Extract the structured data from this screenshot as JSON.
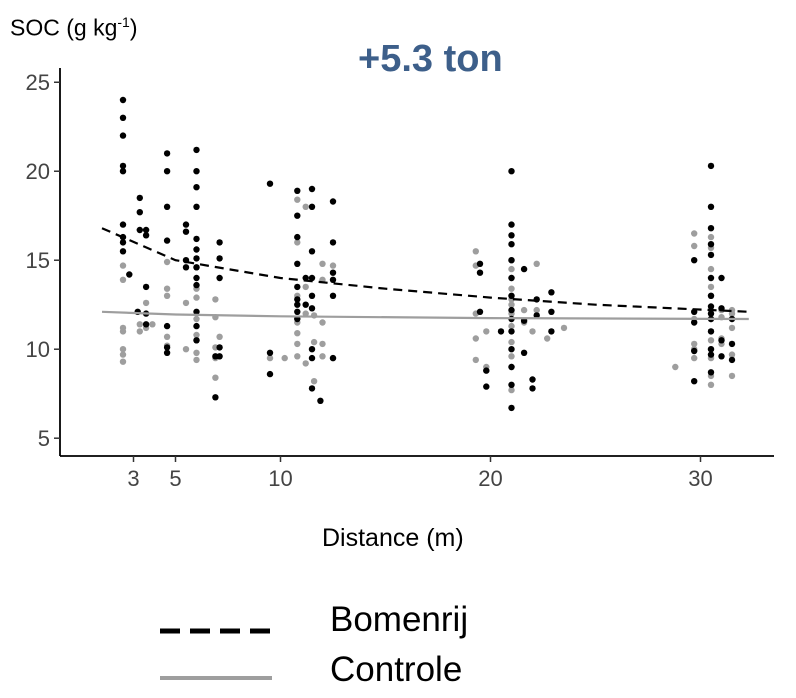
{
  "chart_data": {
    "type": "scatter",
    "ylabel": {
      "main": "SOC (g kg",
      "sup": "-1",
      "end": ")"
    },
    "xlabel": "Distance (m)",
    "annotation": "+5.3 ton",
    "xlim": [
      -0.5,
      33.5
    ],
    "ylim": [
      4.0,
      25.8
    ],
    "xticks": [
      3,
      5,
      10,
      20,
      30
    ],
    "yticks": [
      5,
      10,
      15,
      20,
      25
    ],
    "grid": false,
    "legend_position": "bottom",
    "series": [
      {
        "name": "Bomenrij",
        "color": "#000000",
        "line_style": "dashed",
        "trend": [
          [
            1.5,
            16.8
          ],
          [
            5,
            15.0
          ],
          [
            10,
            14.0
          ],
          [
            15,
            13.4
          ],
          [
            20,
            12.9
          ],
          [
            25,
            12.5
          ],
          [
            32.3,
            12.1
          ]
        ],
        "points": [
          [
            2.5,
            24.0
          ],
          [
            2.5,
            23.0
          ],
          [
            2.5,
            22.0
          ],
          [
            2.5,
            20.3
          ],
          [
            2.5,
            20.0
          ],
          [
            2.5,
            17.0
          ],
          [
            2.5,
            16.3
          ],
          [
            2.5,
            16.0
          ],
          [
            2.5,
            15.5
          ],
          [
            2.8,
            14.2
          ],
          [
            3.3,
            18.5
          ],
          [
            3.3,
            17.7
          ],
          [
            3.3,
            16.7
          ],
          [
            3.2,
            12.1
          ],
          [
            3.6,
            16.7
          ],
          [
            3.6,
            16.4
          ],
          [
            3.6,
            13.5
          ],
          [
            3.6,
            12.0
          ],
          [
            3.6,
            11.4
          ],
          [
            4.6,
            21.0
          ],
          [
            4.6,
            20.0
          ],
          [
            4.6,
            18.0
          ],
          [
            4.6,
            16.1
          ],
          [
            4.6,
            11.3
          ],
          [
            4.6,
            10.1
          ],
          [
            4.6,
            9.8
          ],
          [
            5.5,
            17.0
          ],
          [
            5.5,
            16.6
          ],
          [
            5.5,
            15.0
          ],
          [
            5.5,
            14.6
          ],
          [
            6.0,
            21.2
          ],
          [
            6.0,
            20.0
          ],
          [
            6.0,
            19.1
          ],
          [
            6.0,
            18.0
          ],
          [
            6.0,
            16.2
          ],
          [
            6.0,
            15.6
          ],
          [
            6.0,
            15.1
          ],
          [
            6.0,
            14.6
          ],
          [
            6.0,
            14.0
          ],
          [
            6.0,
            13.6
          ],
          [
            6.0,
            12.1
          ],
          [
            6.0,
            11.3
          ],
          [
            6.0,
            10.5
          ],
          [
            7.1,
            16.0
          ],
          [
            7.1,
            15.1
          ],
          [
            7.1,
            14.0
          ],
          [
            7.1,
            10.1
          ],
          [
            7.1,
            9.6
          ],
          [
            6.9,
            9.6
          ],
          [
            6.9,
            7.3
          ],
          [
            9.5,
            19.3
          ],
          [
            9.5,
            9.8
          ],
          [
            9.5,
            8.6
          ],
          [
            10.8,
            18.9
          ],
          [
            10.8,
            17.5
          ],
          [
            10.8,
            16.3
          ],
          [
            10.8,
            14.8
          ],
          [
            10.8,
            13.5
          ],
          [
            10.8,
            12.8
          ],
          [
            10.8,
            12.5
          ],
          [
            10.8,
            12.1
          ],
          [
            10.8,
            11.7
          ],
          [
            11.5,
            19.0
          ],
          [
            11.5,
            18.0
          ],
          [
            11.5,
            15.5
          ],
          [
            11.5,
            14.0
          ],
          [
            11.5,
            13.0
          ],
          [
            11.5,
            12.3
          ],
          [
            11.5,
            10.0
          ],
          [
            11.5,
            9.5
          ],
          [
            11.5,
            7.8
          ],
          [
            11.9,
            7.1
          ],
          [
            12.5,
            18.3
          ],
          [
            12.5,
            16.0
          ],
          [
            12.5,
            14.3
          ],
          [
            12.5,
            13.9
          ],
          [
            12.5,
            13.0
          ],
          [
            12.5,
            9.5
          ],
          [
            11.2,
            14.0
          ],
          [
            11.2,
            12.5
          ],
          [
            19.5,
            14.8
          ],
          [
            19.5,
            14.3
          ],
          [
            19.5,
            12.1
          ],
          [
            19.8,
            8.8
          ],
          [
            19.8,
            7.9
          ],
          [
            20.5,
            11.0
          ],
          [
            21.0,
            20.0
          ],
          [
            21.0,
            17.0
          ],
          [
            21.0,
            16.4
          ],
          [
            21.0,
            15.9
          ],
          [
            21.0,
            15.0
          ],
          [
            21.0,
            14.0
          ],
          [
            21.0,
            13.0
          ],
          [
            21.0,
            12.2
          ],
          [
            21.0,
            11.7
          ],
          [
            21.0,
            11.0
          ],
          [
            21.0,
            10.0
          ],
          [
            21.0,
            9.0
          ],
          [
            21.0,
            8.0
          ],
          [
            21.0,
            6.7
          ],
          [
            21.6,
            14.5
          ],
          [
            21.6,
            11.6
          ],
          [
            21.6,
            9.8
          ],
          [
            22.0,
            8.3
          ],
          [
            22.0,
            7.8
          ],
          [
            22.2,
            11.9
          ],
          [
            22.2,
            12.8
          ],
          [
            22.9,
            13.2
          ],
          [
            22.9,
            12.1
          ],
          [
            22.9,
            11.0
          ],
          [
            29.7,
            15.0
          ],
          [
            29.7,
            12.1
          ],
          [
            29.7,
            11.5
          ],
          [
            29.7,
            9.9
          ],
          [
            29.7,
            8.2
          ],
          [
            30.5,
            20.3
          ],
          [
            30.5,
            18.0
          ],
          [
            30.5,
            16.8
          ],
          [
            30.5,
            15.9
          ],
          [
            30.5,
            15.3
          ],
          [
            30.5,
            14.0
          ],
          [
            30.5,
            13.0
          ],
          [
            30.5,
            12.4
          ],
          [
            30.5,
            12.0
          ],
          [
            30.5,
            11.7
          ],
          [
            30.5,
            11.0
          ],
          [
            30.5,
            10.0
          ],
          [
            30.5,
            9.7
          ],
          [
            30.5,
            8.7
          ],
          [
            31.0,
            14.0
          ],
          [
            31.0,
            12.3
          ],
          [
            31.0,
            10.5
          ],
          [
            31.0,
            9.6
          ],
          [
            31.5,
            11.7
          ],
          [
            31.5,
            10.3
          ],
          [
            31.5,
            9.4
          ]
        ]
      },
      {
        "name": "Controle",
        "color": "#9e9e9e",
        "line_style": "solid",
        "trend": [
          [
            1.5,
            12.1
          ],
          [
            5,
            11.95
          ],
          [
            10,
            11.85
          ],
          [
            20,
            11.75
          ],
          [
            32.3,
            11.7
          ]
        ],
        "points": [
          [
            2.5,
            14.7
          ],
          [
            2.5,
            13.9
          ],
          [
            2.5,
            11.2
          ],
          [
            2.5,
            11.0
          ],
          [
            2.5,
            10.0
          ],
          [
            2.5,
            9.7
          ],
          [
            2.5,
            9.3
          ],
          [
            3.3,
            11.4
          ],
          [
            3.3,
            11.0
          ],
          [
            3.6,
            12.6
          ],
          [
            3.6,
            11.2
          ],
          [
            3.9,
            11.4
          ],
          [
            4.6,
            14.9
          ],
          [
            4.6,
            13.4
          ],
          [
            4.6,
            13.0
          ],
          [
            4.6,
            10.7
          ],
          [
            4.6,
            10.2
          ],
          [
            5.5,
            12.6
          ],
          [
            5.5,
            10.0
          ],
          [
            6.0,
            14.6
          ],
          [
            6.0,
            13.4
          ],
          [
            6.0,
            12.9
          ],
          [
            6.0,
            11.7
          ],
          [
            6.0,
            10.8
          ],
          [
            6.0,
            10.5
          ],
          [
            6.0,
            9.8
          ],
          [
            6.0,
            9.4
          ],
          [
            6.9,
            12.8
          ],
          [
            6.9,
            11.8
          ],
          [
            6.9,
            10.1
          ],
          [
            6.9,
            9.5
          ],
          [
            6.9,
            8.4
          ],
          [
            7.1,
            10.7
          ],
          [
            9.5,
            9.5
          ],
          [
            10.2,
            9.5
          ],
          [
            10.8,
            18.4
          ],
          [
            10.8,
            16.0
          ],
          [
            10.8,
            13.0
          ],
          [
            10.8,
            11.5
          ],
          [
            10.8,
            10.9
          ],
          [
            10.8,
            10.3
          ],
          [
            10.8,
            9.6
          ],
          [
            11.2,
            18.0
          ],
          [
            11.2,
            13.5
          ],
          [
            11.2,
            12.0
          ],
          [
            11.2,
            9.2
          ],
          [
            11.6,
            11.9
          ],
          [
            11.6,
            10.4
          ],
          [
            11.6,
            8.2
          ],
          [
            12.0,
            14.8
          ],
          [
            12.0,
            13.9
          ],
          [
            12.0,
            11.5
          ],
          [
            12.0,
            10.3
          ],
          [
            12.0,
            9.6
          ],
          [
            12.5,
            14.7
          ],
          [
            12.5,
            9.5
          ],
          [
            19.3,
            15.5
          ],
          [
            19.3,
            14.7
          ],
          [
            19.3,
            12.0
          ],
          [
            19.3,
            10.6
          ],
          [
            19.3,
            9.4
          ],
          [
            19.8,
            11.0
          ],
          [
            19.8,
            9.0
          ],
          [
            19.8,
            8.8
          ],
          [
            21.0,
            15.0
          ],
          [
            21.0,
            14.5
          ],
          [
            21.0,
            14.0
          ],
          [
            21.0,
            13.4
          ],
          [
            21.0,
            13.0
          ],
          [
            21.0,
            12.8
          ],
          [
            21.0,
            12.5
          ],
          [
            21.0,
            12.0
          ],
          [
            21.0,
            11.3
          ],
          [
            21.0,
            10.4
          ],
          [
            21.0,
            9.6
          ],
          [
            21.0,
            9.0
          ],
          [
            21.0,
            7.7
          ],
          [
            21.6,
            12.2
          ],
          [
            21.6,
            11.5
          ],
          [
            22.0,
            11.0
          ],
          [
            22.2,
            14.8
          ],
          [
            22.2,
            12.2
          ],
          [
            22.7,
            10.6
          ],
          [
            23.5,
            11.2
          ],
          [
            28.8,
            9.0
          ],
          [
            29.7,
            16.5
          ],
          [
            29.7,
            15.8
          ],
          [
            29.7,
            11.7
          ],
          [
            29.7,
            10.3
          ],
          [
            29.7,
            10.0
          ],
          [
            29.7,
            9.5
          ],
          [
            30.5,
            16.3
          ],
          [
            30.5,
            15.7
          ],
          [
            30.5,
            14.5
          ],
          [
            30.5,
            13.5
          ],
          [
            30.5,
            13.0
          ],
          [
            30.5,
            12.2
          ],
          [
            30.5,
            11.7
          ],
          [
            30.5,
            11.0
          ],
          [
            30.5,
            10.5
          ],
          [
            30.5,
            10.0
          ],
          [
            30.5,
            9.5
          ],
          [
            30.5,
            8.5
          ],
          [
            30.5,
            8.0
          ],
          [
            31.0,
            12.2
          ],
          [
            31.0,
            11.8
          ],
          [
            31.0,
            10.6
          ],
          [
            31.0,
            10.3
          ],
          [
            31.5,
            12.2
          ],
          [
            31.5,
            12.0
          ],
          [
            31.5,
            11.2
          ],
          [
            31.5,
            9.7
          ],
          [
            31.5,
            8.5
          ]
        ]
      }
    ]
  }
}
